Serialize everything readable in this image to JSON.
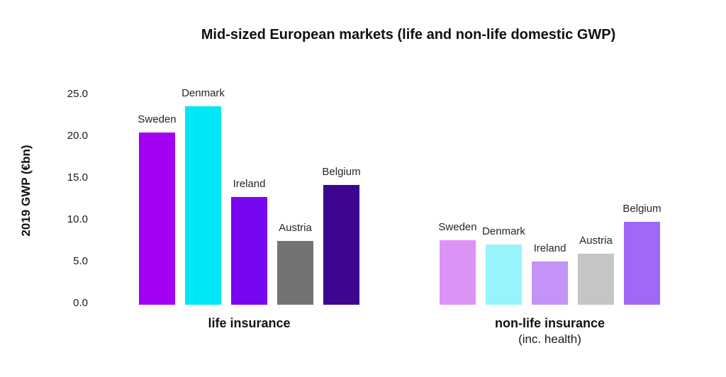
{
  "title": "Mid-sized European markets (life and non-life domestic GWP)",
  "chart_data": {
    "type": "bar",
    "title": "Mid-sized European markets (life and non-life domestic GWP)",
    "ylabel": "2019 GWP (€bn)",
    "ylim": [
      0,
      25
    ],
    "yticks": [
      "25.0",
      "20.0",
      "15.0",
      "10.0",
      "5.0",
      "0.0"
    ],
    "grid": false,
    "legend": "none",
    "groups": [
      {
        "label": "life insurance",
        "sublabel": "",
        "bars": [
          {
            "country": "Sweden",
            "value": 20.6,
            "color": "#A201F2"
          },
          {
            "country": "Denmark",
            "value": 23.7,
            "color": "#00E8F5"
          },
          {
            "country": "Ireland",
            "value": 12.9,
            "color": "#7906F0"
          },
          {
            "country": "Austria",
            "value": 7.6,
            "color": "#737373"
          },
          {
            "country": "Belgium",
            "value": 14.3,
            "color": "#3D0690"
          }
        ]
      },
      {
        "label": "non-life insurance",
        "sublabel": "(inc. health)",
        "bars": [
          {
            "country": "Sweden",
            "value": 7.7,
            "color": "#DB93F7"
          },
          {
            "country": "Denmark",
            "value": 7.2,
            "color": "#98F4FA"
          },
          {
            "country": "Ireland",
            "value": 5.2,
            "color": "#C393F7"
          },
          {
            "country": "Austria",
            "value": 6.1,
            "color": "#C5C5C7"
          },
          {
            "country": "Belgium",
            "value": 9.9,
            "color": "#A168F7"
          }
        ]
      }
    ]
  }
}
